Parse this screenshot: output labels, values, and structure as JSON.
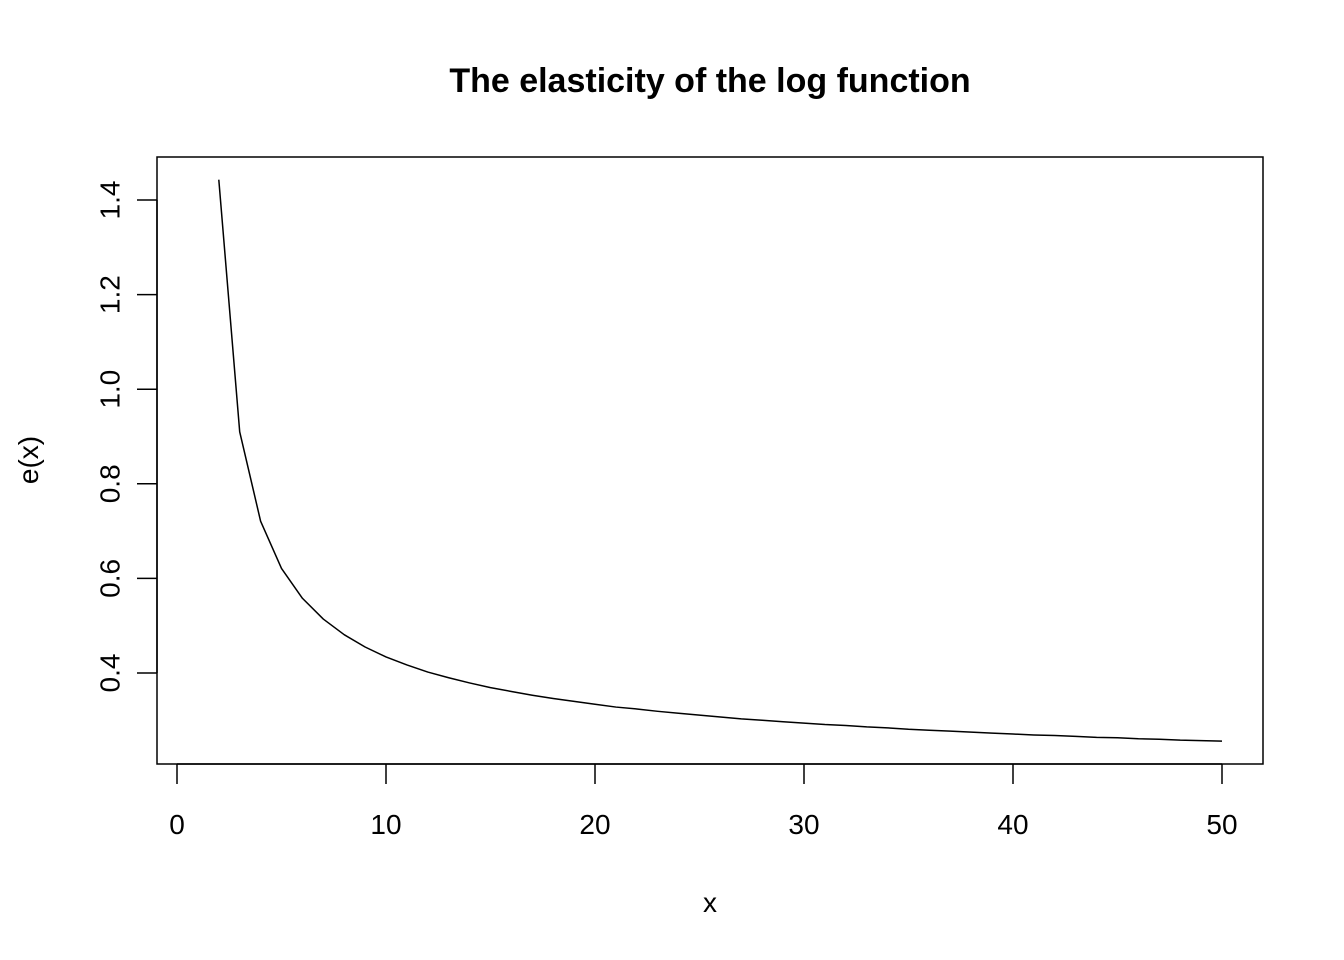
{
  "chart_data": {
    "type": "line",
    "title": "The elasticity of the log function",
    "xlabel": "x",
    "ylabel": "e(x)",
    "xlim": [
      0,
      50
    ],
    "ylim": [
      0.22,
      1.5
    ],
    "x_ticks": [
      0,
      10,
      20,
      30,
      40,
      50
    ],
    "x_tick_labels": [
      "0",
      "10",
      "20",
      "30",
      "40",
      "50"
    ],
    "y_ticks": [
      0.4,
      0.6,
      0.8,
      1.0,
      1.2,
      1.4
    ],
    "y_tick_labels": [
      "0.4",
      "0.6",
      "0.8",
      "1.0",
      "1.2",
      "1.4"
    ],
    "grid": false,
    "legend": "none",
    "series": [
      {
        "color": "#000000",
        "x": [
          2,
          3,
          4,
          5,
          6,
          7,
          8,
          9,
          10,
          11,
          12,
          13,
          14,
          15,
          16,
          17,
          18,
          19,
          20,
          21,
          22,
          23,
          24,
          25,
          26,
          27,
          28,
          29,
          30,
          31,
          32,
          33,
          34,
          35,
          36,
          37,
          38,
          39,
          40,
          41,
          42,
          43,
          44,
          45,
          46,
          47,
          48,
          49,
          50
        ],
        "y": [
          1.443,
          0.91,
          0.721,
          0.621,
          0.558,
          0.514,
          0.481,
          0.455,
          0.434,
          0.417,
          0.402,
          0.39,
          0.379,
          0.369,
          0.361,
          0.353,
          0.346,
          0.34,
          0.334,
          0.328,
          0.324,
          0.319,
          0.315,
          0.311,
          0.307,
          0.303,
          0.3,
          0.297,
          0.294,
          0.291,
          0.289,
          0.286,
          0.284,
          0.281,
          0.279,
          0.277,
          0.275,
          0.273,
          0.271,
          0.269,
          0.268,
          0.266,
          0.264,
          0.263,
          0.261,
          0.26,
          0.258,
          0.257,
          0.256
        ]
      }
    ]
  }
}
